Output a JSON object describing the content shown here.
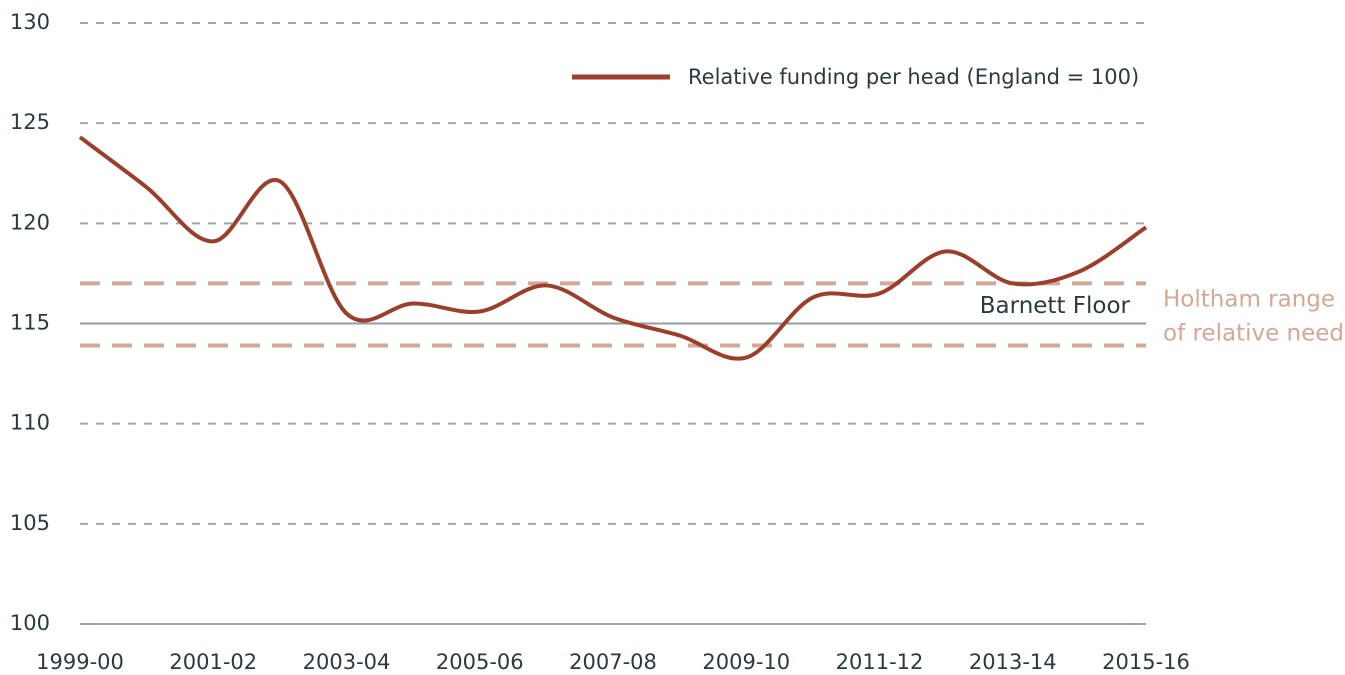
{
  "chart_data": {
    "type": "line",
    "categories": [
      "1999-00",
      null,
      "2001-02",
      null,
      "2003-04",
      null,
      "2005-06",
      null,
      "2007-08",
      null,
      "2009-10",
      null,
      "2011-12",
      null,
      "2013-14",
      null,
      "2015-16"
    ],
    "series": [
      {
        "name": "Relative funding per head (England = 100)",
        "color": "#9b3f2c",
        "values": [
          124.3,
          121.8,
          119.1,
          122.1,
          115.5,
          116.0,
          115.6,
          116.9,
          115.3,
          114.4,
          113.3,
          116.3,
          116.5,
          118.6,
          117.0,
          117.6,
          119.8
        ]
      }
    ],
    "ylim": [
      100,
      130
    ],
    "yticks": [
      100,
      105,
      110,
      115,
      120,
      125,
      130
    ],
    "grid": true,
    "grid_color": "#9aabb0",
    "reference_line": {
      "value": 115,
      "label": "Barnett Floor",
      "color": "#8f9ea3"
    },
    "range": {
      "values": [
        113.9,
        117
      ],
      "label_lines": [
        "Holtham range",
        "of relative need"
      ],
      "color": "#d4a796"
    },
    "legend": "top-right"
  }
}
